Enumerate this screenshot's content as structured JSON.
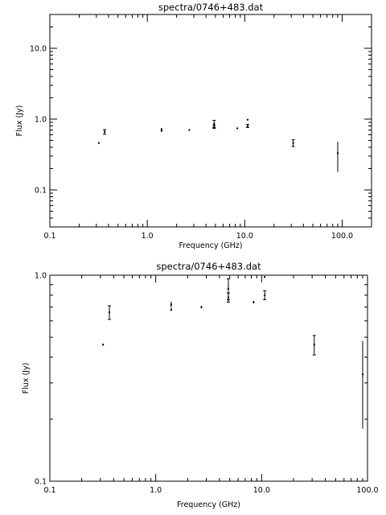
{
  "chart_data": [
    {
      "type": "scatter",
      "title": "spectra/0746+483.dat",
      "xlabel": "Frequency (GHz)",
      "ylabel": "Flux (Jy)",
      "xscale": "log",
      "yscale": "log",
      "xlim": [
        0.1,
        200
      ],
      "ylim": [
        0.03,
        30
      ],
      "xtick_values": [
        0.1,
        1,
        10,
        100
      ],
      "xtick_labels": [
        "0.1",
        "1.0",
        "10.0",
        "100.0"
      ],
      "ytick_values": [
        0.1,
        1,
        10
      ],
      "ytick_labels": [
        "0.1",
        "1.0",
        "10.0"
      ],
      "grid": false,
      "points": [
        {
          "x": 0.318,
          "y": 0.46,
          "err": 0.005
        },
        {
          "x": 0.365,
          "y": 0.66,
          "err": 0.05
        },
        {
          "x": 1.4,
          "y": 0.72,
          "err": 0.025
        },
        {
          "x": 1.4,
          "y": 0.68,
          "err": 0.01
        },
        {
          "x": 2.7,
          "y": 0.7,
          "err": 0.01
        },
        {
          "x": 4.85,
          "y": 0.86,
          "err": 0.1
        },
        {
          "x": 4.85,
          "y": 0.78,
          "err": 0.04
        },
        {
          "x": 8.4,
          "y": 0.74,
          "err": 0.01
        },
        {
          "x": 10.7,
          "y": 0.8,
          "err": 0.04
        },
        {
          "x": 10.7,
          "y": 0.98,
          "err": 0.01
        },
        {
          "x": 31.4,
          "y": 0.46,
          "err": 0.05
        },
        {
          "x": 90,
          "y": 0.33,
          "err": 0.15
        }
      ]
    },
    {
      "type": "scatter",
      "title": "spectra/0746+483.dat",
      "xlabel": "Frequency (GHz)",
      "ylabel": "Flux (Jy)",
      "xscale": "log",
      "yscale": "log",
      "xlim": [
        0.1,
        100
      ],
      "ylim": [
        0.1,
        1.0
      ],
      "xtick_values": [
        0.1,
        1,
        10,
        100
      ],
      "xtick_labels": [
        "0.1",
        "1.0",
        "10.0",
        "100.0"
      ],
      "ytick_values": [
        0.1,
        1
      ],
      "ytick_labels": [
        "0.1",
        "1.0"
      ],
      "grid": false,
      "points": [
        {
          "x": 0.318,
          "y": 0.46,
          "err": 0.005
        },
        {
          "x": 0.365,
          "y": 0.66,
          "err": 0.05
        },
        {
          "x": 1.4,
          "y": 0.72,
          "err": 0.025
        },
        {
          "x": 1.4,
          "y": 0.68,
          "err": 0.01
        },
        {
          "x": 2.7,
          "y": 0.7,
          "err": 0.01
        },
        {
          "x": 4.85,
          "y": 0.86,
          "err": 0.1
        },
        {
          "x": 4.85,
          "y": 0.78,
          "err": 0.04
        },
        {
          "x": 8.4,
          "y": 0.74,
          "err": 0.01
        },
        {
          "x": 10.7,
          "y": 0.8,
          "err": 0.04
        },
        {
          "x": 10.7,
          "y": 0.98,
          "err": 0.01
        },
        {
          "x": 31.4,
          "y": 0.46,
          "err": 0.05
        },
        {
          "x": 90,
          "y": 0.33,
          "err": 0.15
        }
      ]
    }
  ]
}
